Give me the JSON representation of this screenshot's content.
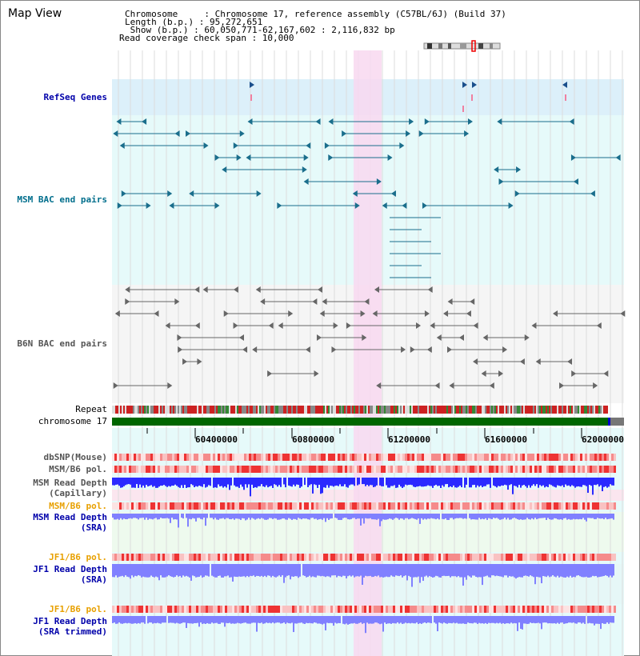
{
  "title": "Map View",
  "header": {
    "chromosome_line": "Chromosome     : Chromosome 17, reference assembly (C57BL/6J) (Build 37)",
    "length_line": "Length (b.p.) : 95,272,651",
    "show_line": " Show (b.p.) : 60,050,771-62,167,602 : 2,116,832 bp",
    "span_line": "Read coverage check span : 10,000"
  },
  "tracks": {
    "refseq": "RefSeq Genes",
    "msm_bac": "MSM BAC end pairs",
    "b6n_bac": "B6N BAC end pairs",
    "repeat": "Repeat",
    "chromosome": "chromosome 17",
    "dbsnp": "dbSNP(Mouse)",
    "msm_pol1": "MSM/B6 pol.",
    "msm_depth_cap_1": "MSM Read Depth",
    "msm_depth_cap_2": "(Capillary)",
    "msm_pol2": "MSM/B6 pol.",
    "msm_depth_sra_1": "MSM Read Depth",
    "msm_depth_sra_2": "(SRA)",
    "jf1_pol1": "JF1/B6 pol.",
    "jf1_depth_sra_1": "JF1 Read Depth",
    "jf1_depth_sra_2": "(SRA)",
    "jf1_pol2": "JF1/B6 pol.",
    "jf1_depth_trim_1": "JF1 Read Depth",
    "jf1_depth_trim_2": "(SRA trimmed)"
  },
  "axis": {
    "ticks": [
      "60400000",
      "60800000",
      "61200000",
      "61600000",
      "62000000"
    ]
  },
  "colors": {
    "refseq_bg": "#dcf0fa",
    "msm_bg": "#e6fafa",
    "b6n_bg": "#f5f5f5",
    "highlight": "#f8d8f0",
    "msm_feature": "#1a6e8c",
    "b6n_feature": "#666666",
    "chromosome_bar": "#006600",
    "depth_capillary": "#2a2aff",
    "depth_sra": "#8080ff"
  }
}
